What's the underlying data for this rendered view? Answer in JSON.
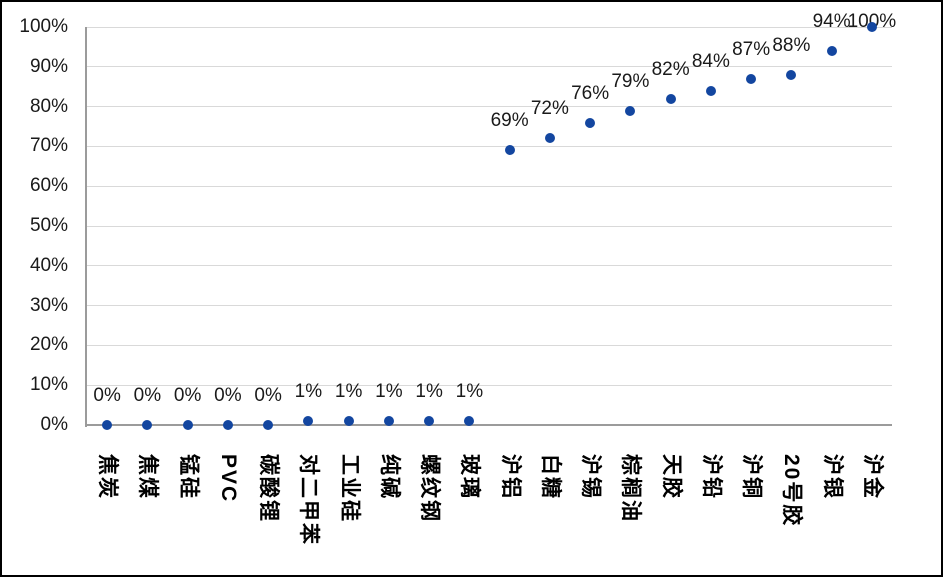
{
  "chart_data": {
    "type": "scatter",
    "title": "",
    "xlabel": "",
    "ylabel": "",
    "categories": [
      "焦炭",
      "焦煤",
      "锰硅",
      "PVC",
      "碳酸锂",
      "对二甲苯",
      "工业硅",
      "纯碱",
      "螺纹钢",
      "玻璃",
      "沪铝",
      "白糖",
      "沪锡",
      "棕榈油",
      "天胶",
      "沪铅",
      "沪铜",
      "20号胶",
      "沪银",
      "沪金"
    ],
    "values": [
      0,
      0,
      0,
      0,
      0,
      1,
      1,
      1,
      1,
      1,
      69,
      72,
      76,
      79,
      82,
      84,
      87,
      88,
      94,
      100
    ],
    "point_labels": [
      "0%",
      "0%",
      "0%",
      "0%",
      "0%",
      "1%",
      "1%",
      "1%",
      "1%",
      "1%",
      "69%",
      "72%",
      "76%",
      "79%",
      "82%",
      "84%",
      "87%",
      "88%",
      "94%",
      "100%"
    ],
    "ylim": [
      0,
      100
    ],
    "y_tick_values": [
      0,
      10,
      20,
      30,
      40,
      50,
      60,
      70,
      80,
      90,
      100
    ],
    "y_tick_labels": [
      "0%",
      "10%",
      "20%",
      "30%",
      "40%",
      "50%",
      "60%",
      "70%",
      "80%",
      "90%",
      "100%"
    ],
    "grid": true,
    "legend_position": "none",
    "colors": {
      "marker": "#1346A0",
      "gridline": "#D9D9D9",
      "axis_line": "#9B9B9B",
      "tick_label": "#1A1A1A",
      "category_label": "#000000",
      "background": "#FFFFFF",
      "frame_border": "#000000"
    }
  }
}
